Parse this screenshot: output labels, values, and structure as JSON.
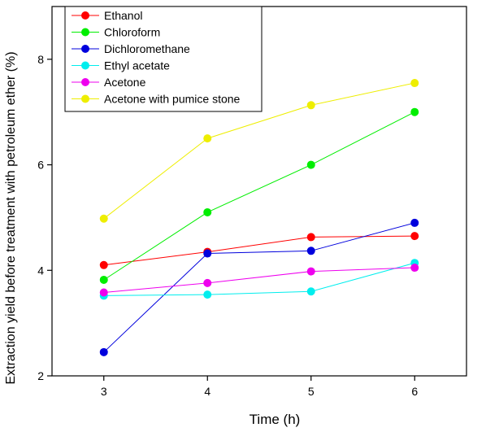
{
  "chart_data": {
    "type": "line",
    "title": "",
    "xlabel": "Time (h)",
    "ylabel": "Extraction yield before treatment with petroleum ether (%)",
    "xlim": [
      2.5,
      6.5
    ],
    "ylim": [
      2,
      9
    ],
    "x": [
      3,
      4,
      5,
      6
    ],
    "xticks": [
      3,
      4,
      5,
      6
    ],
    "yticks": [
      2,
      4,
      6,
      8
    ],
    "grid": false,
    "legend_position": "top-left",
    "series": [
      {
        "name": "Ethanol",
        "color": "#ff0000",
        "values": [
          4.1,
          4.35,
          4.63,
          4.65
        ]
      },
      {
        "name": "Chloroform",
        "color": "#00ee00",
        "values": [
          3.82,
          5.1,
          6.0,
          7.0
        ]
      },
      {
        "name": "Dichloromethane",
        "color": "#0000dd",
        "values": [
          2.45,
          4.32,
          4.37,
          4.9
        ]
      },
      {
        "name": "Ethyl acetate",
        "color": "#00eeee",
        "values": [
          3.52,
          3.54,
          3.6,
          4.14
        ]
      },
      {
        "name": "Acetone",
        "color": "#ee00ee",
        "values": [
          3.58,
          3.76,
          3.98,
          4.05
        ]
      },
      {
        "name": "Acetone with pumice stone",
        "color": "#eeee00",
        "values": [
          4.98,
          6.5,
          7.13,
          7.55
        ]
      }
    ]
  }
}
